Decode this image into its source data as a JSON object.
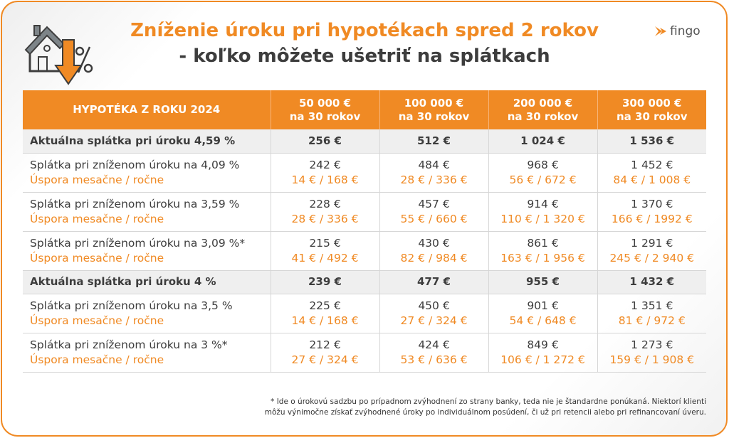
{
  "title_line1": "Zníženie úroku pri hypotékach spred 2 rokov",
  "title_line2": "- koľko môžete ušetriť na splátkach",
  "logo": "fingo",
  "colors": {
    "accent": "#f08a24",
    "text": "#3d3d3d",
    "highlight_row": "#efefef"
  },
  "icons": [
    "house-percent-down-icon",
    "fingo-arrow-logo-icon"
  ],
  "table": {
    "header": {
      "label": "HYPOTÉKA Z ROKU 2024",
      "columns": [
        [
          "50 000 €",
          "na 30 rokov"
        ],
        [
          "100 000 €",
          "na 30 rokov"
        ],
        [
          "200 000 €",
          "na 30 rokov"
        ],
        [
          "300 000 €",
          "na 30 rokov"
        ]
      ]
    },
    "rows": [
      {
        "type": "current",
        "label": "Aktuálna splátka pri úroku 4,59 %",
        "values": [
          "256 €",
          "512 €",
          "1 024 €",
          "1 536 €"
        ]
      },
      {
        "type": "reduced",
        "label": "Splátka pri zníženom úroku na 4,09 %",
        "sublabel": "Úspora mesačne / ročne",
        "values": [
          "242 €",
          "484 €",
          "968 €",
          "1 452 €"
        ],
        "savings": [
          "14 € / 168 €",
          "28 € / 336 €",
          "56 € / 672 €",
          "84 € / 1 008 €"
        ]
      },
      {
        "type": "reduced",
        "label": "Splátka pri zníženom úroku na 3,59 %",
        "sublabel": "Úspora mesačne / ročne",
        "values": [
          "228 €",
          "457 €",
          "914 €",
          "1 370 €"
        ],
        "savings": [
          "28 € / 336 €",
          "55 € / 660 €",
          "110 € / 1 320 €",
          "166 € / 1992 €"
        ]
      },
      {
        "type": "reduced",
        "label": "Splátka pri zníženom úroku na 3,09 %*",
        "sublabel": "Úspora mesačne / ročne",
        "values": [
          "215 €",
          "430 €",
          "861 €",
          "1 291 €"
        ],
        "savings": [
          "41 € / 492 €",
          "82 € / 984 €",
          "163 € / 1 956 €",
          "245 € / 2 940 €"
        ]
      },
      {
        "type": "current",
        "label": "Aktuálna splátka pri úroku 4 %",
        "values": [
          "239 €",
          "477 €",
          "955 €",
          "1 432 €"
        ]
      },
      {
        "type": "reduced",
        "label": "Splátka pri zníženom úroku na 3,5 %",
        "sublabel": "Úspora mesačne / ročne",
        "values": [
          "225 €",
          "450 €",
          "901 €",
          "1 351 €"
        ],
        "savings": [
          "14 € / 168 €",
          "27 € / 324 €",
          "54 € / 648 €",
          "81 € / 972 €"
        ]
      },
      {
        "type": "reduced",
        "label": "Splátka pri zníženom úroku na 3 %*",
        "sublabel": "Úspora mesačne / ročne",
        "values": [
          "212 €",
          "424 €",
          "849 €",
          "1 273 €"
        ],
        "savings": [
          "27 € / 324 €",
          "53 € / 636 €",
          "106 € / 1 272 €",
          "159 € / 1 908 €"
        ]
      }
    ]
  },
  "footnote_line1": "* Ide o úrokovú sadzbu po prípadnom zvýhodnení zo strany banky, teda nie je štandardne ponúkaná. Niektorí klienti",
  "footnote_line2": "môžu výnimočne získať zvýhodnené úroky po individuálnom posúdení, či už pri retencii alebo pri refinancovaní úveru."
}
